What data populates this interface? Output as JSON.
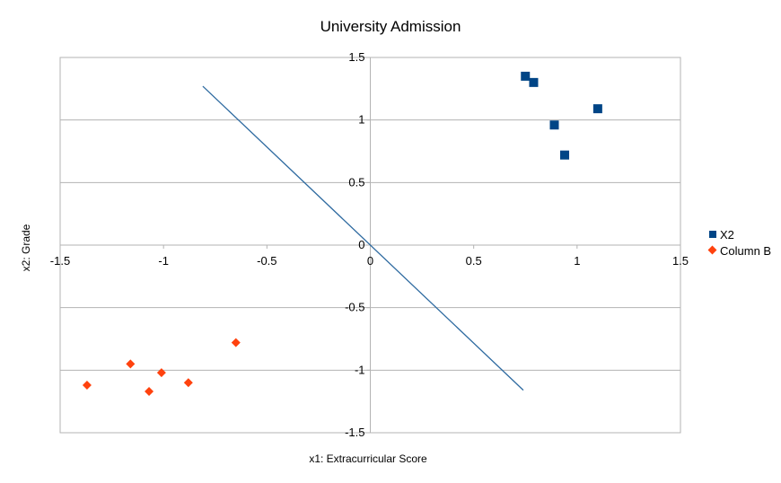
{
  "chart_data": {
    "type": "scatter",
    "title": "University Admission",
    "xlabel": "x1: Extracurricular Score",
    "ylabel": "x2: Grade",
    "xlim": [
      -1.5,
      1.5
    ],
    "ylim": [
      -1.5,
      1.5
    ],
    "xticks": [
      "-1.5",
      "-1",
      "-0.5",
      "0",
      "0.5",
      "1",
      "1.5"
    ],
    "yticks": [
      "1.5",
      "1",
      "0.5",
      "0",
      "-0.5",
      "-1",
      "-1.5"
    ],
    "grid": "horizontal",
    "legend_position": "right",
    "series": [
      {
        "name": "X2",
        "marker": "square",
        "color": "#004586",
        "points": [
          [
            0.75,
            1.35
          ],
          [
            0.79,
            1.3
          ],
          [
            0.89,
            0.96
          ],
          [
            0.94,
            0.72
          ],
          [
            1.1,
            1.09
          ]
        ]
      },
      {
        "name": "Column B",
        "marker": "diamond",
        "color": "#ff420e",
        "points": [
          [
            -1.37,
            -1.12
          ],
          [
            -1.16,
            -0.95
          ],
          [
            -1.07,
            -1.17
          ],
          [
            -1.01,
            -1.02
          ],
          [
            -0.88,
            -1.1
          ],
          [
            -0.65,
            -0.78
          ]
        ]
      }
    ],
    "line": {
      "color": "#2e6aa0",
      "points": [
        [
          -0.81,
          1.27
        ],
        [
          0.74,
          -1.16
        ]
      ]
    }
  }
}
